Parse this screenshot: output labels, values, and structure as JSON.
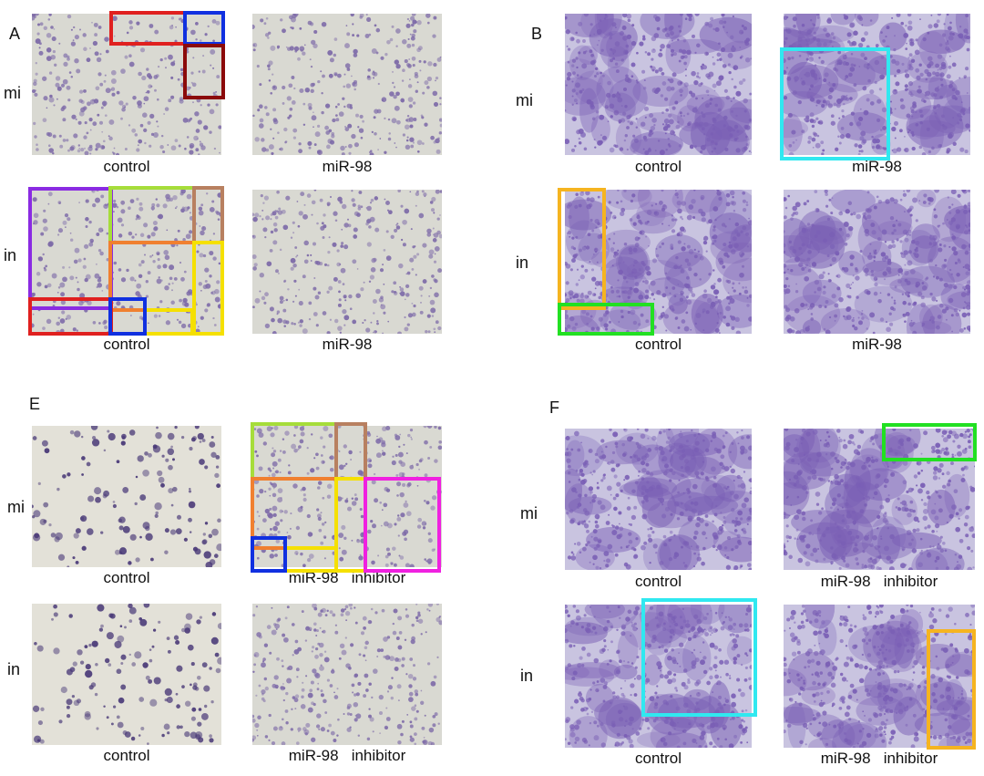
{
  "panels": {
    "A": {
      "letter": "A",
      "row1": "mi",
      "row2": "in",
      "cap_ctrl_1": "control",
      "cap_mir_1": "miR-98",
      "cap_ctrl_2": "control",
      "cap_mir_2": "miR-98"
    },
    "B": {
      "letter": "B",
      "row1": "mi",
      "row2": "in",
      "cap_ctrl_1": "control",
      "cap_mir_1": "miR-98",
      "cap_ctrl_2": "control",
      "cap_mir_2": "miR-98"
    },
    "E": {
      "letter": "E",
      "row1": "mi",
      "row2": "in",
      "cap_ctrl_1": "control",
      "cap_mir_1": "miR-98   inhibitor",
      "cap_ctrl_2": "control",
      "cap_mir_2": "miR-98   inhibitor"
    },
    "F": {
      "letter": "F",
      "row1": "mi",
      "row2": "in",
      "cap_ctrl_1": "control",
      "cap_mir_1": "miR-98   inhibitor",
      "cap_ctrl_2": "control",
      "cap_mir_2": "miR-98   inhibitor"
    }
  },
  "colors": {
    "light_bg": "#d9d9d2",
    "light_cells": "#7d6aa8",
    "dense_bg": "#c9c4e0",
    "dense_cells": "#7a5fb5",
    "sparse_bg": "#e3e1d8",
    "sparse_cells": "#4a3a78",
    "box_red": "#e0201f",
    "box_blue": "#1030e0",
    "box_darkred": "#8b0a0a",
    "box_purple": "#8a2be2",
    "box_lime": "#a6dd3a",
    "box_brown": "#b88060",
    "box_orange": "#f08030",
    "box_yellow": "#f5e000",
    "box_cyan": "#30e8f0",
    "box_gold": "#f5b420",
    "box_green": "#22e022",
    "box_magenta": "#f020e0"
  }
}
